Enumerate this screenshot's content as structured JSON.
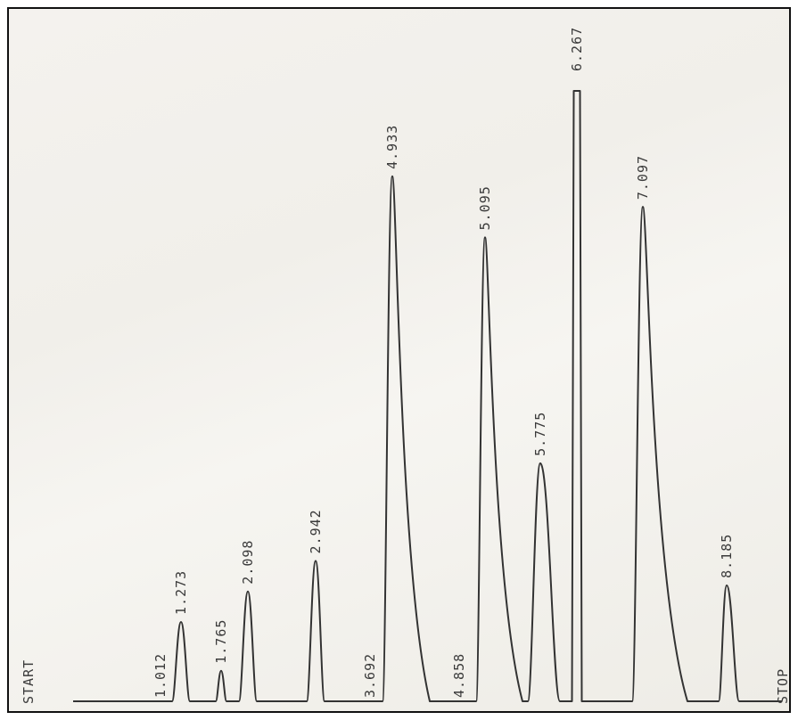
{
  "chart_data": {
    "type": "line",
    "title": "",
    "xlabel": "",
    "ylabel": "",
    "start_label": "START",
    "stop_label": "STOP",
    "xlim": [
      0,
      8.9
    ],
    "ylim": [
      0,
      100
    ],
    "grid": false,
    "line_color": "#333333",
    "peaks": [
      {
        "label": "1.012",
        "rt": 1.012,
        "height": 0
      },
      {
        "label": "1.273",
        "rt": 1.273,
        "height": 13
      },
      {
        "label": "1.765",
        "rt": 1.765,
        "height": 5
      },
      {
        "label": "2.098",
        "rt": 2.098,
        "height": 18
      },
      {
        "label": "2.942",
        "rt": 2.942,
        "height": 23
      },
      {
        "label": "3.692",
        "rt": 3.692,
        "height": 0
      },
      {
        "label": "4.933",
        "rt": 4.933,
        "height": 86
      },
      {
        "label": "4.858",
        "rt": 4.858,
        "height": 0
      },
      {
        "label": "5.095",
        "rt": 5.095,
        "height": 76
      },
      {
        "label": "5.775",
        "rt": 5.775,
        "height": 39
      },
      {
        "label": "6.267",
        "rt": 6.267,
        "height": 100
      },
      {
        "label": "7.097",
        "rt": 7.097,
        "height": 81
      },
      {
        "label": "8.185",
        "rt": 8.185,
        "height": 19
      }
    ]
  }
}
